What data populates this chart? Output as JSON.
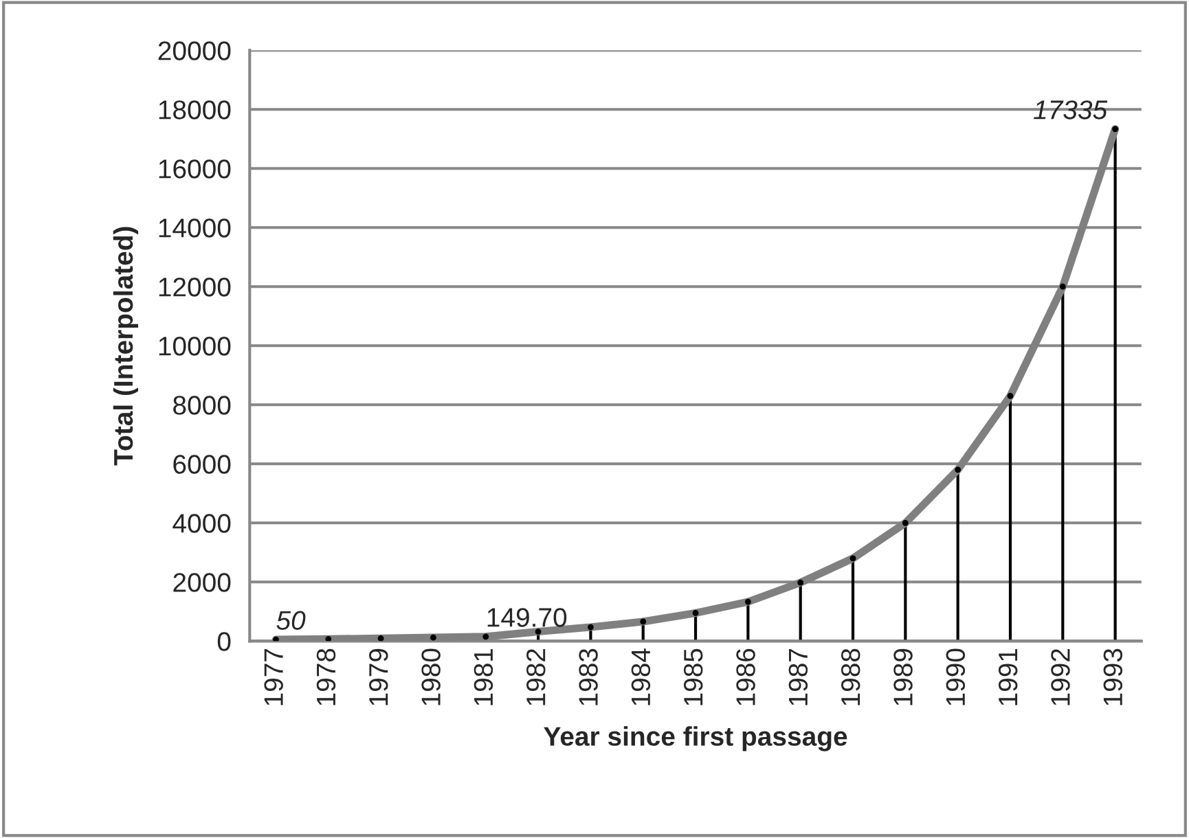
{
  "chart_data": {
    "type": "line",
    "xlabel": "Year since first passage",
    "ylabel": "Total (Interpolated)",
    "categories": [
      "1977",
      "1978",
      "1979",
      "1980",
      "1981",
      "1982",
      "1983",
      "1984",
      "1985",
      "1986",
      "1987",
      "1988",
      "1989",
      "1990",
      "1991",
      "1992",
      "1993"
    ],
    "series": [
      {
        "type": "lollipop",
        "color": "#000000",
        "marker": "circle",
        "values": [
          50,
          70,
          90,
          120,
          149.7,
          320,
          470,
          660,
          950,
          1330,
          1980,
          2800,
          4000,
          5800,
          8300,
          12000,
          17335
        ]
      },
      {
        "color": "#808080",
        "values": [
          50,
          70,
          90,
          120,
          149.7,
          320,
          470,
          660,
          950,
          1330,
          1980,
          2800,
          4000,
          5800,
          8300,
          12000,
          17335
        ],
        "value_labels": [
          "50",
          null,
          null,
          null,
          "149.70",
          null,
          null,
          null,
          null,
          null,
          null,
          null,
          null,
          null,
          null,
          null,
          "17335"
        ]
      }
    ],
    "ylim": [
      0,
      20000
    ],
    "yticks": [
      0,
      2000,
      4000,
      6000,
      8000,
      10000,
      12000,
      14000,
      16000,
      18000,
      20000
    ],
    "grid": "y",
    "legend": false,
    "marker": "none",
    "line_style": "solid"
  }
}
